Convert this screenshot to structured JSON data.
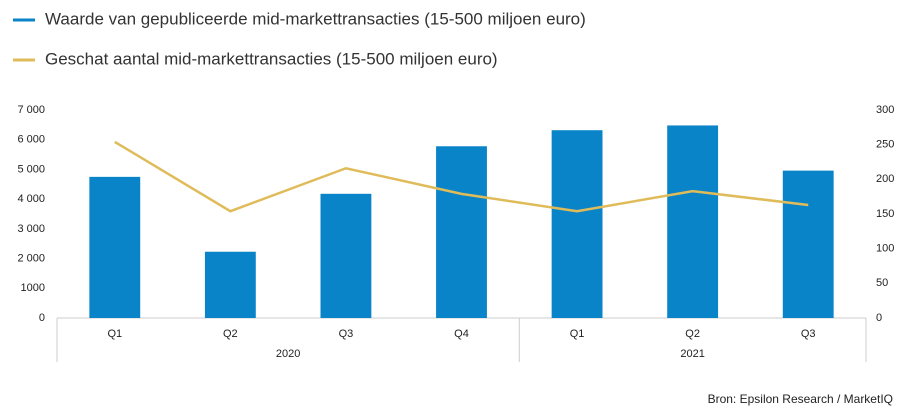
{
  "chart_data": {
    "type": "bar",
    "source": "Bron: Epsilon Research / MarketIQ",
    "groups": [
      {
        "label": "2020",
        "categories": [
          "Q1",
          "Q2",
          "Q3",
          "Q4"
        ]
      },
      {
        "label": "2021",
        "categories": [
          "Q1",
          "Q2",
          "Q3"
        ]
      }
    ],
    "series": [
      {
        "name": "Waarde van gepubliceerde mid-markettransacties (15-500 miljoen euro)",
        "type": "bar",
        "color": "#0a84c8",
        "values": [
          4750,
          2230,
          4180,
          5780,
          6320,
          6480,
          4960
        ]
      },
      {
        "name": "Geschat aantal mid-markettransacties (15-500 miljoen euro)",
        "type": "line",
        "axis": "y2",
        "color": "#e0bb5a",
        "values": [
          254,
          154,
          216,
          179,
          154,
          183,
          163
        ]
      }
    ],
    "ylim": [
      0,
      7000
    ],
    "yticks": [
      0,
      1000,
      {
        "value": 2000,
        "label": "2 000"
      },
      {
        "value": 3000,
        "label": "3 000"
      },
      {
        "value": 4000,
        "label": "4 000"
      },
      {
        "value": 5000,
        "label": "5 000"
      },
      {
        "value": 6000,
        "label": "6 000"
      },
      {
        "value": 7000,
        "label": "7 000"
      }
    ],
    "y2lim": [
      0,
      300
    ],
    "y2ticks": [
      0,
      50,
      100,
      150,
      200,
      250,
      300
    ],
    "grid": false,
    "legend": "top"
  }
}
